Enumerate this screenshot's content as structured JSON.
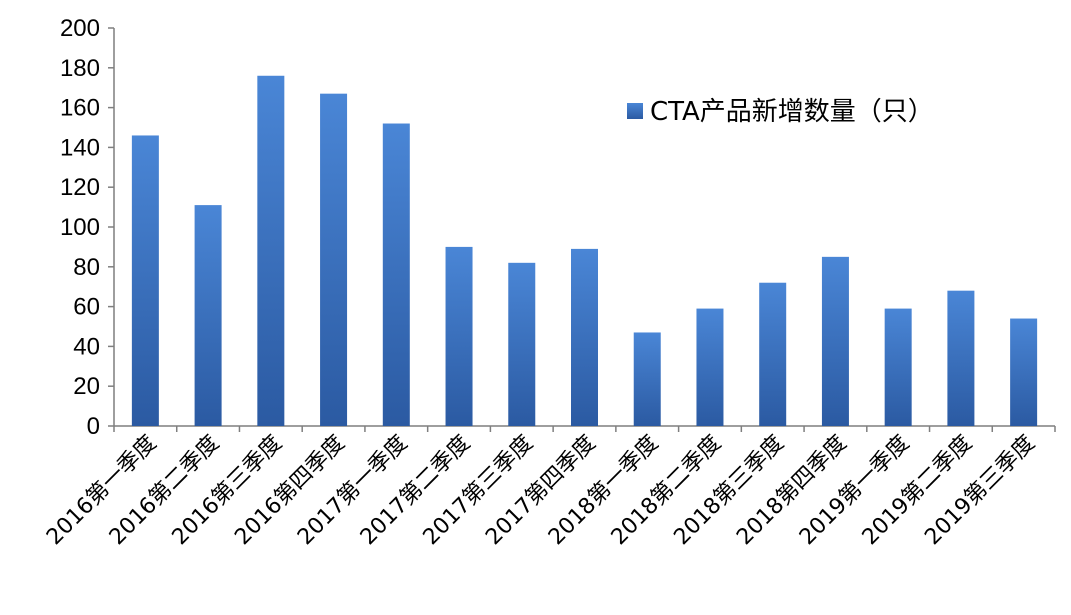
{
  "chart_data": {
    "type": "bar",
    "categories": [
      "2016第一季度",
      "2016第二季度",
      "2016第三季度",
      "2016第四季度",
      "2017第一季度",
      "2017第二季度",
      "2017第三季度",
      "2017第四季度",
      "2018第一季度",
      "2018第二季度",
      "2018第三季度",
      "2018第四季度",
      "2019第一季度",
      "2019第二季度",
      "2019第三季度"
    ],
    "series": [
      {
        "name": "CTA产品新增数量（只）",
        "values": [
          146,
          111,
          176,
          167,
          152,
          90,
          82,
          89,
          47,
          59,
          72,
          85,
          59,
          68,
          54
        ],
        "color": "#3d74c1"
      }
    ],
    "ylim": [
      0,
      200
    ],
    "yticks": [
      0,
      20,
      40,
      60,
      80,
      100,
      120,
      140,
      160,
      180,
      200
    ],
    "grid": false,
    "legend_position": "top-right"
  }
}
